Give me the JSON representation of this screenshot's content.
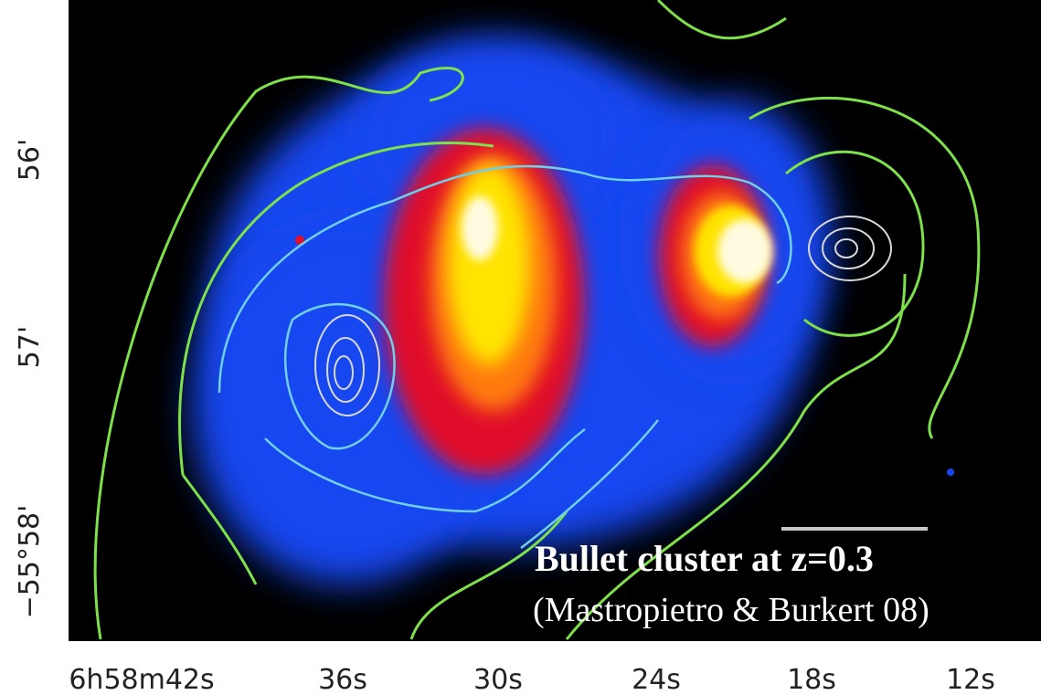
{
  "image": {
    "x_tick_labels": [
      "6h58m42s",
      "36s",
      "30s",
      "24s",
      "18s",
      "12s"
    ],
    "y_tick_labels": [
      "56'",
      "57'",
      "−55°58'"
    ],
    "caption": {
      "title": "Bullet cluster at z=0.3",
      "reference": "(Mastropietro & Burkert 08)"
    }
  }
}
